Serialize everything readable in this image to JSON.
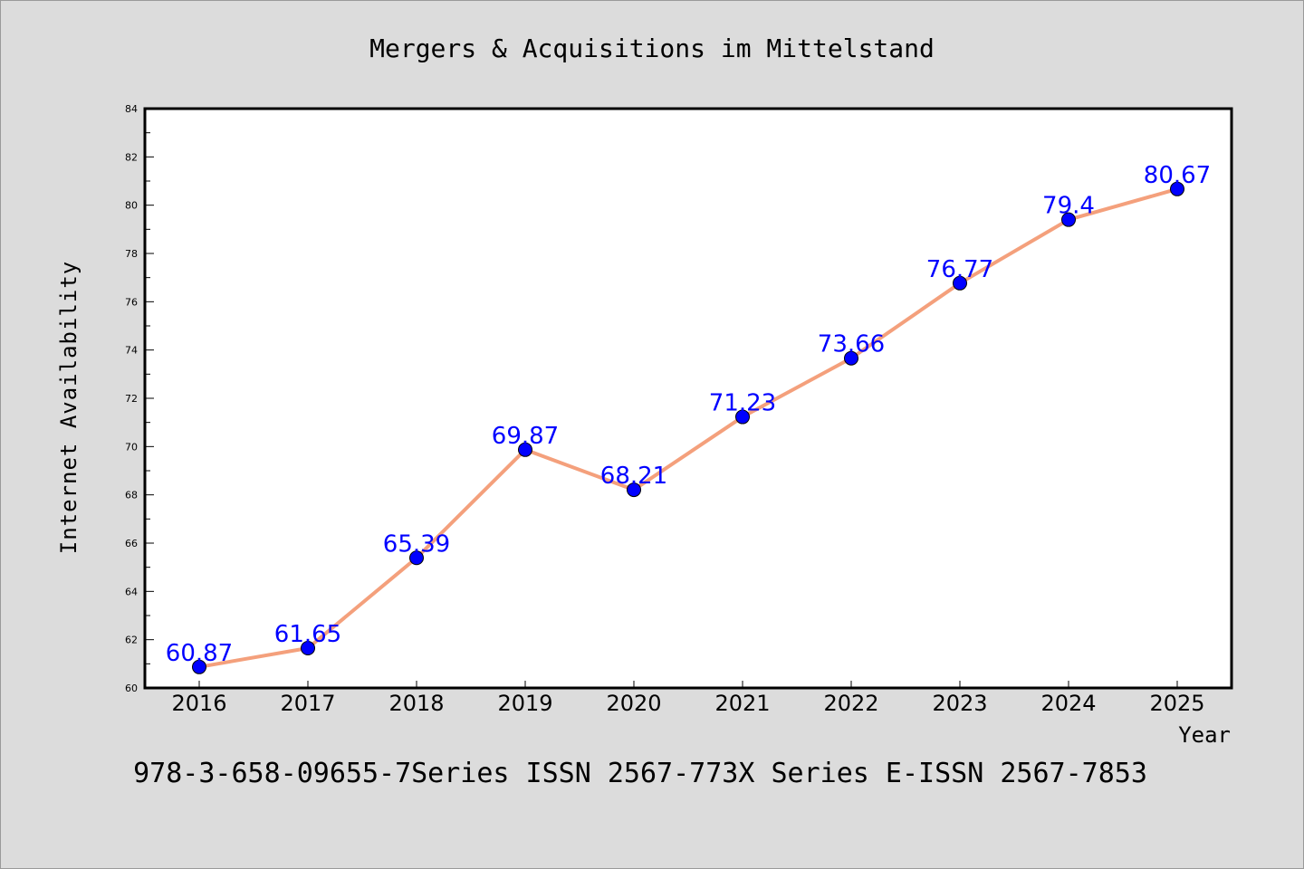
{
  "chart_data": {
    "type": "line",
    "title": "Mergers & Acquisitions im Mittelstand",
    "xlabel": "Year",
    "ylabel": "Internet Availability",
    "x": [
      "2016",
      "2017",
      "2018",
      "2019",
      "2020",
      "2021",
      "2022",
      "2023",
      "2024",
      "2025"
    ],
    "values": [
      60.87,
      61.65,
      65.39,
      69.87,
      68.21,
      71.23,
      73.66,
      76.77,
      79.4,
      80.67
    ],
    "data_labels": [
      "60.87",
      "61.65",
      "65.39",
      "69.87",
      "68.21",
      "71.23",
      "73.66",
      "76.77",
      "79.4",
      "80.67"
    ],
    "ylim": [
      60,
      84
    ],
    "yticks": [
      "60",
      "62",
      "64",
      "66",
      "68",
      "70",
      "72",
      "74",
      "76",
      "78",
      "80",
      "82",
      "84"
    ],
    "grid": false,
    "legend": "none",
    "line_color": "#f4a07c",
    "marker_color": "#0000ff",
    "label_color": "#0000ff"
  },
  "footer": "978-3-658-09655-7Series ISSN 2567-773X Series E-ISSN 2567-7853"
}
